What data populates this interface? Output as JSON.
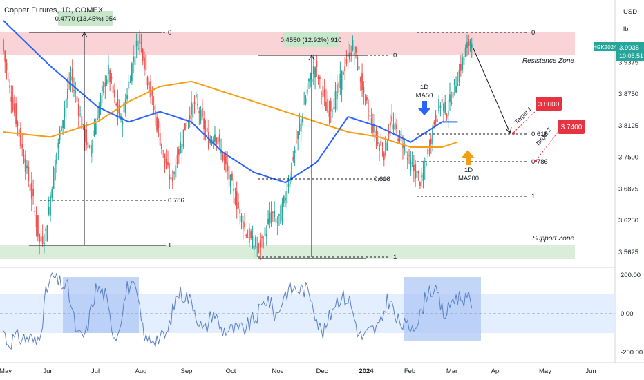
{
  "header": {
    "symbol_title": "Copper Futures, 1D, COMEX",
    "currency": "USD",
    "unit": "lb"
  },
  "price_badge": {
    "ticker": "HGK2024",
    "price": "3.9935",
    "countdown": "10:05:51"
  },
  "zones": {
    "resistance_label": "Resistance Zone",
    "support_label": "Support Zone"
  },
  "measures": {
    "first": "0.4770 (13.45%) 954",
    "second": "0.4550 (12.92%) 910"
  },
  "fib_labels": {
    "zero": "0",
    "one": "1",
    "r0618": "0.618",
    "r0786": "0.786"
  },
  "ma_labels": {
    "ma50_line1": "1D",
    "ma50_line2": "MA50",
    "ma200_line1": "1D",
    "ma200_line2": "MA200"
  },
  "targets": {
    "target1_label": "Target 1",
    "target1_value": "3.8000",
    "target2_label": "Target 2",
    "target2_value": "3.7400"
  },
  "colors": {
    "up_candle": "#26a69a",
    "down_candle": "#ef5350",
    "ma50": "#2962ff",
    "ma200": "#f59d14",
    "resistance_zone": "#f7c4c8",
    "support_zone": "#cfe8cf",
    "cci_line": "#5b7fc4",
    "cci_band": "#e3efff",
    "highlight": "#a9c4f5",
    "target_badge": "#e53341",
    "price_badge": "#26a69a"
  },
  "chart_data": {
    "type": "candlestick",
    "title": "Copper Futures, 1D, COMEX",
    "price_ticks": [
      "3.9375",
      "3.8750",
      "3.8125",
      "3.7500",
      "3.6875",
      "3.6250",
      "3.5625"
    ],
    "price_range": [
      3.535,
      4.05
    ],
    "cci_ticks": [
      "200.00",
      "0.00",
      "-200.00"
    ],
    "time_ticks": [
      "May",
      "Jun",
      "Jul",
      "Aug",
      "Sep",
      "Oct",
      "Nov",
      "Dec",
      "2024",
      "Feb",
      "Mar",
      "Apr",
      "May",
      "Jun"
    ],
    "price_close_path": [
      [
        0,
        3.98
      ],
      [
        4,
        3.9
      ],
      [
        8,
        3.84
      ],
      [
        12,
        3.78
      ],
      [
        16,
        3.72
      ],
      [
        20,
        3.66
      ],
      [
        24,
        3.58
      ],
      [
        28,
        3.6
      ],
      [
        32,
        3.7
      ],
      [
        36,
        3.78
      ],
      [
        40,
        3.85
      ],
      [
        44,
        3.91
      ],
      [
        48,
        3.86
      ],
      [
        52,
        3.8
      ],
      [
        56,
        3.76
      ],
      [
        60,
        3.82
      ],
      [
        64,
        3.88
      ],
      [
        68,
        3.92
      ],
      [
        72,
        3.86
      ],
      [
        76,
        3.82
      ],
      [
        80,
        3.88
      ],
      [
        84,
        3.95
      ],
      [
        88,
        3.99
      ],
      [
        92,
        3.92
      ],
      [
        96,
        3.86
      ],
      [
        100,
        3.8
      ],
      [
        104,
        3.74
      ],
      [
        108,
        3.7
      ],
      [
        112,
        3.75
      ],
      [
        116,
        3.8
      ],
      [
        120,
        3.84
      ],
      [
        124,
        3.86
      ],
      [
        128,
        3.82
      ],
      [
        132,
        3.78
      ],
      [
        136,
        3.8
      ],
      [
        140,
        3.76
      ],
      [
        144,
        3.72
      ],
      [
        148,
        3.68
      ],
      [
        152,
        3.64
      ],
      [
        156,
        3.6
      ],
      [
        160,
        3.58
      ],
      [
        164,
        3.57
      ],
      [
        168,
        3.6
      ],
      [
        172,
        3.64
      ],
      [
        176,
        3.62
      ],
      [
        180,
        3.66
      ],
      [
        184,
        3.72
      ],
      [
        188,
        3.78
      ],
      [
        192,
        3.84
      ],
      [
        196,
        3.9
      ],
      [
        200,
        3.93
      ],
      [
        204,
        3.88
      ],
      [
        208,
        3.84
      ],
      [
        212,
        3.86
      ],
      [
        216,
        3.9
      ],
      [
        220,
        3.94
      ],
      [
        224,
        3.97
      ],
      [
        228,
        3.92
      ],
      [
        232,
        3.86
      ],
      [
        236,
        3.82
      ],
      [
        240,
        3.78
      ],
      [
        244,
        3.76
      ],
      [
        248,
        3.82
      ],
      [
        252,
        3.8
      ],
      [
        256,
        3.78
      ],
      [
        260,
        3.74
      ],
      [
        264,
        3.72
      ],
      [
        268,
        3.7
      ],
      [
        272,
        3.76
      ],
      [
        276,
        3.82
      ],
      [
        280,
        3.86
      ],
      [
        284,
        3.84
      ],
      [
        288,
        3.88
      ],
      [
        292,
        3.92
      ],
      [
        296,
        3.96
      ],
      [
        300,
        3.99
      ]
    ],
    "series": [
      {
        "name": "1D MA50",
        "values": [
          [
            0,
            4.02
          ],
          [
            30,
            3.93
          ],
          [
            60,
            3.85
          ],
          [
            80,
            3.82
          ],
          [
            100,
            3.84
          ],
          [
            120,
            3.82
          ],
          [
            140,
            3.76
          ],
          [
            160,
            3.72
          ],
          [
            180,
            3.7
          ],
          [
            200,
            3.74
          ],
          [
            220,
            3.83
          ],
          [
            240,
            3.81
          ],
          [
            260,
            3.78
          ],
          [
            280,
            3.82
          ],
          [
            290,
            3.82
          ]
        ]
      },
      {
        "name": "1D MA200",
        "values": [
          [
            0,
            3.8
          ],
          [
            30,
            3.79
          ],
          [
            60,
            3.82
          ],
          [
            80,
            3.86
          ],
          [
            100,
            3.89
          ],
          [
            120,
            3.9
          ],
          [
            140,
            3.88
          ],
          [
            160,
            3.86
          ],
          [
            180,
            3.84
          ],
          [
            200,
            3.82
          ],
          [
            220,
            3.8
          ],
          [
            240,
            3.79
          ],
          [
            260,
            3.77
          ],
          [
            280,
            3.77
          ],
          [
            290,
            3.78
          ]
        ]
      }
    ],
    "annotations": [
      "Resistance Zone",
      "Support Zone",
      "Target 1",
      "Target 2",
      "0.4770 (13.45%) 954",
      "0.4550 (12.92%) 910"
    ],
    "target_values": [
      3.8,
      3.74
    ],
    "xlabel": "",
    "ylabel": ""
  }
}
